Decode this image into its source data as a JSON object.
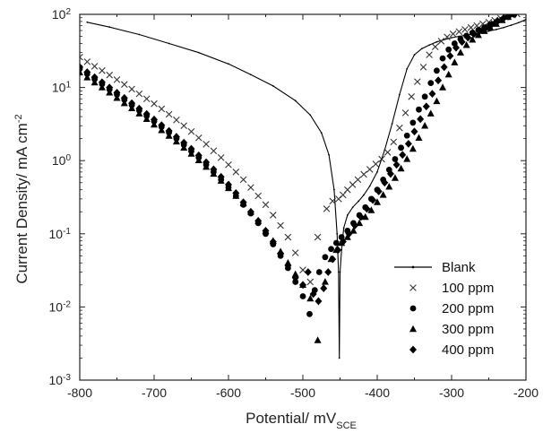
{
  "chart_data": {
    "type": "scatter",
    "title": "",
    "x_scale": "linear",
    "y_scale": "log",
    "xlim": [
      -800,
      -200
    ],
    "ylim": [
      0.001,
      100
    ],
    "xlabel": {
      "main": "Potential/ mV",
      "subscript": "SCE"
    },
    "ylabel": {
      "main": "Current Density/ mA cm",
      "superscript": "-2"
    },
    "x_ticks": [
      "-800",
      "-700",
      "-600",
      "-500",
      "-400",
      "-300",
      "-200"
    ],
    "x_tick_values": [
      -800,
      -700,
      -600,
      -500,
      -400,
      -300,
      -200
    ],
    "y_ticks": [
      {
        "base": "10",
        "exp": "-3",
        "value": 0.001
      },
      {
        "base": "10",
        "exp": "-2",
        "value": 0.01
      },
      {
        "base": "10",
        "exp": "-1",
        "value": 0.1
      },
      {
        "base": "10",
        "exp": "0",
        "value": 1
      },
      {
        "base": "10",
        "exp": "1",
        "value": 10
      },
      {
        "base": "10",
        "exp": "2",
        "value": 100
      }
    ],
    "legend_position": "bottom-right",
    "grid": false,
    "series": [
      {
        "name": "Blank",
        "marker": "line",
        "x": [
          -790,
          -760,
          -720,
          -680,
          -640,
          -600,
          -570,
          -540,
          -510,
          -490,
          -475,
          -465,
          -458,
          -454,
          -452,
          -451,
          -450,
          -448,
          -445,
          -440,
          -433,
          -425,
          -418,
          -410,
          -400,
          -390,
          -380,
          -370,
          -360,
          -350,
          -340,
          -330,
          -320,
          -310,
          -300,
          -290,
          -280,
          -270,
          -260,
          -250,
          -240,
          -230,
          -220,
          -210,
          -200
        ],
        "y": [
          78,
          67,
          53,
          40,
          30,
          21,
          15,
          10.5,
          6.6,
          4.2,
          2.4,
          1.2,
          0.4,
          0.1,
          0.03,
          0.002,
          0.03,
          0.06,
          0.12,
          0.18,
          0.23,
          0.28,
          0.34,
          0.45,
          0.7,
          1.4,
          3.2,
          8,
          18,
          28,
          34,
          38,
          42,
          45,
          48,
          50,
          52,
          54,
          56,
          59,
          62,
          66,
          71,
          77,
          85
        ]
      },
      {
        "name": "100 ppm",
        "marker": "x",
        "x": [
          -800,
          -790,
          -780,
          -770,
          -760,
          -750,
          -740,
          -730,
          -720,
          -710,
          -700,
          -690,
          -680,
          -670,
          -660,
          -650,
          -640,
          -630,
          -620,
          -610,
          -600,
          -590,
          -580,
          -570,
          -560,
          -550,
          -540,
          -530,
          -520,
          -510,
          -500,
          -490,
          -480,
          -468,
          -460,
          -452,
          -446,
          -440,
          -433,
          -426,
          -418,
          -410,
          -402,
          -394,
          -386,
          -378,
          -370,
          -362,
          -354,
          -346,
          -338,
          -330,
          -322,
          -314,
          -306,
          -298,
          -290,
          -282,
          -274,
          -266,
          -258,
          -250,
          -242,
          -234,
          -226,
          -218,
          -212
        ],
        "y": [
          26,
          22.5,
          19.5,
          17,
          14.8,
          12.8,
          11,
          9.5,
          8.2,
          7,
          6,
          5.1,
          4.3,
          3.6,
          3,
          2.5,
          2.05,
          1.68,
          1.36,
          1.1,
          0.88,
          0.7,
          0.55,
          0.43,
          0.33,
          0.25,
          0.18,
          0.13,
          0.09,
          0.055,
          0.032,
          0.022,
          0.09,
          0.22,
          0.28,
          0.3,
          0.34,
          0.4,
          0.47,
          0.55,
          0.65,
          0.76,
          0.9,
          1.05,
          1.3,
          1.8,
          2.8,
          4.5,
          7.5,
          12,
          19,
          28,
          36,
          43,
          49,
          54,
          58,
          62,
          66,
          70,
          74,
          78,
          83,
          88,
          93,
          98,
          101
        ]
      },
      {
        "name": "200 ppm",
        "marker": "circle",
        "x": [
          -800,
          -790,
          -780,
          -770,
          -760,
          -750,
          -740,
          -730,
          -720,
          -710,
          -700,
          -690,
          -680,
          -670,
          -660,
          -650,
          -640,
          -630,
          -620,
          -610,
          -600,
          -590,
          -580,
          -570,
          -560,
          -550,
          -540,
          -530,
          -520,
          -510,
          -500,
          -491,
          -484,
          -478,
          -470,
          -462,
          -455,
          -448,
          -440,
          -432,
          -424,
          -416,
          -408,
          -400,
          -392,
          -384,
          -376,
          -368,
          -360,
          -352,
          -344,
          -336,
          -328,
          -320,
          -312,
          -304,
          -296,
          -288,
          -280,
          -272,
          -264,
          -256,
          -248,
          -240,
          -232,
          -224,
          -216
        ],
        "y": [
          18,
          15.3,
          13,
          11.1,
          9.4,
          8,
          6.8,
          5.75,
          4.85,
          4.1,
          3.45,
          2.9,
          2.42,
          2,
          1.65,
          1.35,
          1.1,
          0.88,
          0.7,
          0.55,
          0.43,
          0.33,
          0.25,
          0.19,
          0.14,
          0.1,
          0.072,
          0.05,
          0.034,
          0.022,
          0.014,
          0.008,
          0.017,
          0.03,
          0.048,
          0.062,
          0.075,
          0.09,
          0.11,
          0.14,
          0.18,
          0.23,
          0.3,
          0.4,
          0.55,
          0.75,
          1.05,
          1.5,
          2.2,
          3.3,
          5,
          7.5,
          11.5,
          17,
          25,
          33,
          40,
          46,
          51,
          56,
          61,
          66,
          72,
          78,
          85,
          92,
          99
        ]
      },
      {
        "name": "300 ppm",
        "marker": "triangle",
        "x": [
          -800,
          -790,
          -780,
          -770,
          -760,
          -750,
          -740,
          -730,
          -720,
          -710,
          -700,
          -690,
          -680,
          -670,
          -660,
          -650,
          -640,
          -630,
          -620,
          -610,
          -600,
          -590,
          -580,
          -570,
          -560,
          -550,
          -540,
          -530,
          -520,
          -510,
          -500,
          -490,
          -480,
          -470,
          -462,
          -455,
          -448,
          -440,
          -432,
          -424,
          -416,
          -408,
          -400,
          -392,
          -384,
          -376,
          -368,
          -360,
          -352,
          -344,
          -336,
          -328,
          -320,
          -312,
          -304,
          -296,
          -288,
          -280,
          -272,
          -264,
          -256,
          -248,
          -240,
          -232,
          -224
        ],
        "y": [
          16,
          13.7,
          11.7,
          10,
          8.5,
          7.2,
          6.1,
          5.2,
          4.4,
          3.7,
          3.1,
          2.6,
          2.18,
          1.82,
          1.5,
          1.24,
          1.01,
          0.82,
          0.66,
          0.53,
          0.42,
          0.33,
          0.26,
          0.2,
          0.15,
          0.11,
          0.08,
          0.057,
          0.04,
          0.028,
          0.02,
          0.013,
          0.0035,
          0.022,
          0.045,
          0.06,
          0.075,
          0.09,
          0.11,
          0.14,
          0.17,
          0.21,
          0.27,
          0.34,
          0.44,
          0.58,
          0.78,
          1.05,
          1.45,
          2.05,
          3,
          4.4,
          6.5,
          10,
          15,
          22,
          30,
          38,
          45,
          52,
          59,
          66,
          74,
          83,
          92
        ]
      },
      {
        "name": "400 ppm",
        "marker": "diamond",
        "x": [
          -800,
          -790,
          -780,
          -770,
          -760,
          -750,
          -740,
          -730,
          -720,
          -710,
          -700,
          -690,
          -680,
          -670,
          -660,
          -650,
          -640,
          -630,
          -620,
          -610,
          -600,
          -590,
          -580,
          -570,
          -560,
          -550,
          -540,
          -530,
          -520,
          -510,
          -500,
          -493,
          -486,
          -479,
          -472,
          -466,
          -460,
          -453,
          -446,
          -438,
          -430,
          -422,
          -414,
          -406,
          -398,
          -390,
          -382,
          -374,
          -366,
          -358,
          -350,
          -342,
          -334,
          -326,
          -318,
          -310,
          -302,
          -294,
          -286,
          -278,
          -270,
          -262,
          -254,
          -246,
          -238,
          -230,
          -222
        ],
        "y": [
          19,
          16.2,
          13.8,
          11.8,
          10,
          8.5,
          7.2,
          6.1,
          5.15,
          4.35,
          3.65,
          3.05,
          2.55,
          2.12,
          1.76,
          1.45,
          1.18,
          0.95,
          0.76,
          0.6,
          0.47,
          0.36,
          0.27,
          0.2,
          0.15,
          0.11,
          0.078,
          0.054,
          0.037,
          0.025,
          0.02,
          0.03,
          0.015,
          0.012,
          0.018,
          0.03,
          0.045,
          0.06,
          0.078,
          0.1,
          0.13,
          0.17,
          0.22,
          0.29,
          0.38,
          0.5,
          0.66,
          0.88,
          1.2,
          1.7,
          2.5,
          3.7,
          5.5,
          8.2,
          12.5,
          19,
          27,
          35,
          42,
          48,
          54,
          60,
          66,
          73,
          81,
          89,
          97
        ]
      }
    ]
  }
}
